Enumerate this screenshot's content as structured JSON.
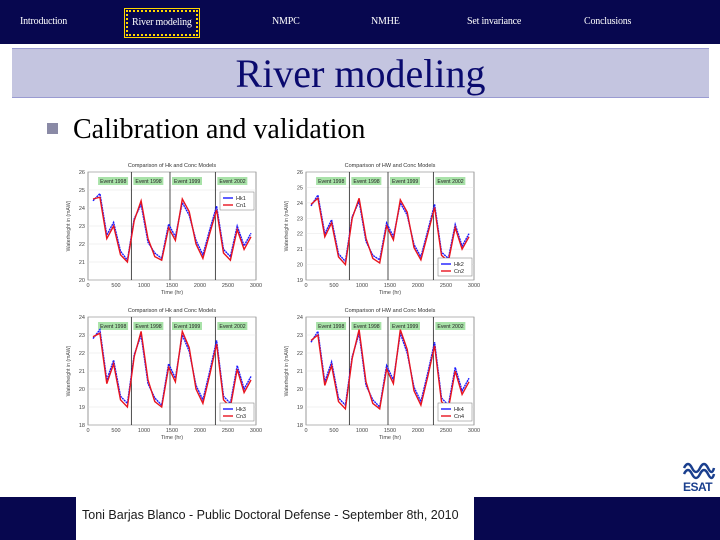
{
  "nav": {
    "items": [
      {
        "label": "Introduction",
        "active": false
      },
      {
        "label": "River modeling",
        "active": true
      },
      {
        "label": "NMPC",
        "active": false
      },
      {
        "label": "NMHE",
        "active": false
      },
      {
        "label": "Set invariance",
        "active": false
      },
      {
        "label": "Conclusions",
        "active": false
      }
    ]
  },
  "slide": {
    "title": "River modeling",
    "bullet": "Calibration and validation"
  },
  "footer": {
    "text": "Toni Barjas Blanco - Public Doctoral Defense - September 8th, 2010"
  },
  "logo": {
    "text": "ESAT"
  },
  "colors": {
    "nav_bg": "#07074f",
    "title_bg": "#c4c5e0",
    "title_text": "#0a0a6e",
    "series_blue": "#1a1aff",
    "series_red": "#e8141e",
    "event_label_bg": "#a8e2a8"
  },
  "chart_data": [
    {
      "type": "line",
      "title": "Comparison of Hk and Conc Models",
      "xlabel": "Time (hr)",
      "ylabel": "Waterheight in (mAW)",
      "x_ticks": [
        0,
        500,
        1000,
        1500,
        2000,
        2500,
        3000
      ],
      "y_ticks": [
        20,
        21,
        22,
        23,
        24,
        25,
        26
      ],
      "ylim": [
        20,
        26
      ],
      "xlim": [
        0,
        3000
      ],
      "events": [
        "Event 1998",
        "Event 1998",
        "Event 1999",
        "Event 2002"
      ],
      "legend": [
        "Hk1",
        "Cn1"
      ],
      "legend_position": "top-right",
      "series": [
        {
          "name": "Hk1",
          "values": [
            24.4,
            24.8,
            22.5,
            23.2,
            21.6,
            21.1,
            23.4,
            24.2,
            22.1,
            21.5,
            21.2,
            23.1,
            22.4,
            24.3,
            23.6,
            22.2,
            21.4,
            22.8,
            24.1,
            21.7,
            21.3,
            23.0,
            21.9,
            22.6
          ]
        },
        {
          "name": "Cn1",
          "values": [
            24.5,
            24.6,
            22.3,
            23.0,
            21.4,
            21.0,
            23.3,
            24.4,
            22.3,
            21.3,
            21.1,
            22.9,
            22.2,
            24.5,
            23.8,
            22.0,
            21.2,
            22.6,
            23.9,
            21.5,
            21.1,
            22.8,
            21.7,
            22.4
          ]
        }
      ]
    },
    {
      "type": "line",
      "title": "Comparison of HW and Conc Models",
      "xlabel": "Time (hr)",
      "ylabel": "Waterheight in (mAW)",
      "x_ticks": [
        0,
        500,
        1000,
        1500,
        2000,
        2500,
        3000
      ],
      "y_ticks": [
        19,
        20,
        21,
        22,
        23,
        24,
        25,
        26
      ],
      "ylim": [
        19,
        26
      ],
      "xlim": [
        0,
        3000
      ],
      "events": [
        "Event 1998",
        "Event 1998",
        "Event 1999",
        "Event 2002"
      ],
      "legend": [
        "Hk2",
        "Cn2"
      ],
      "legend_position": "bottom-right",
      "series": [
        {
          "name": "Hk2",
          "values": [
            23.8,
            24.5,
            22.0,
            22.9,
            20.7,
            20.2,
            23.1,
            24.1,
            21.5,
            20.6,
            20.3,
            22.7,
            21.8,
            24.0,
            23.2,
            21.3,
            20.5,
            22.2,
            23.9,
            20.8,
            20.4,
            22.6,
            21.2,
            22.0
          ]
        },
        {
          "name": "Cn2",
          "values": [
            23.9,
            24.3,
            21.8,
            22.7,
            20.5,
            20.0,
            23.0,
            24.3,
            21.7,
            20.4,
            20.1,
            22.5,
            21.6,
            24.2,
            23.4,
            21.1,
            20.3,
            22.0,
            23.7,
            20.6,
            20.2,
            22.4,
            21.0,
            21.8
          ]
        }
      ]
    },
    {
      "type": "line",
      "title": "Comparison of Hk and Conc Models",
      "xlabel": "Time (hr)",
      "ylabel": "Waterheight in (mAW)",
      "x_ticks": [
        0,
        500,
        1000,
        1500,
        2000,
        2500,
        3000
      ],
      "y_ticks": [
        18,
        19,
        20,
        21,
        22,
        23,
        24
      ],
      "ylim": [
        18,
        24
      ],
      "xlim": [
        0,
        3000
      ],
      "events": [
        "Event 1998",
        "Event 1998",
        "Event 1999",
        "Event 2002"
      ],
      "legend": [
        "Hk3",
        "Cn3"
      ],
      "legend_position": "bottom-right",
      "series": [
        {
          "name": "Hk3",
          "values": [
            22.8,
            23.3,
            20.5,
            21.6,
            19.6,
            19.2,
            21.9,
            23.0,
            20.3,
            19.5,
            19.1,
            21.4,
            20.6,
            23.0,
            22.1,
            20.2,
            19.4,
            21.0,
            22.7,
            19.6,
            19.2,
            21.3,
            20.0,
            20.7
          ]
        },
        {
          "name": "Cn3",
          "values": [
            22.9,
            23.1,
            20.3,
            21.4,
            19.4,
            19.0,
            21.8,
            23.2,
            20.5,
            19.3,
            19.0,
            21.2,
            20.4,
            23.2,
            22.3,
            20.0,
            19.2,
            20.8,
            22.5,
            19.4,
            19.0,
            21.1,
            19.8,
            20.5
          ]
        }
      ]
    },
    {
      "type": "line",
      "title": "Comparison of HW and Conc Models",
      "xlabel": "Time (hr)",
      "ylabel": "Waterheight in (mAW)",
      "x_ticks": [
        0,
        500,
        1000,
        1500,
        2000,
        2500,
        3000
      ],
      "y_ticks": [
        18,
        19,
        20,
        21,
        22,
        23,
        24
      ],
      "ylim": [
        18,
        24
      ],
      "xlim": [
        0,
        3000
      ],
      "events": [
        "Event 1998",
        "Event 1998",
        "Event 1999",
        "Event 2002"
      ],
      "legend": [
        "Hk4",
        "Cn4"
      ],
      "legend_position": "bottom-right",
      "series": [
        {
          "name": "Hk4",
          "values": [
            22.6,
            23.2,
            20.4,
            21.5,
            19.5,
            19.1,
            21.8,
            23.1,
            20.2,
            19.4,
            19.0,
            21.3,
            20.5,
            23.1,
            22.0,
            20.1,
            19.3,
            20.9,
            22.6,
            19.5,
            19.1,
            21.2,
            19.9,
            20.6
          ]
        },
        {
          "name": "Cn4",
          "values": [
            22.7,
            23.0,
            20.2,
            21.3,
            19.3,
            18.9,
            21.7,
            23.3,
            20.4,
            19.2,
            18.9,
            21.1,
            20.3,
            23.3,
            22.2,
            19.9,
            19.1,
            20.7,
            22.4,
            19.3,
            18.9,
            21.0,
            19.7,
            20.4
          ]
        }
      ]
    }
  ]
}
